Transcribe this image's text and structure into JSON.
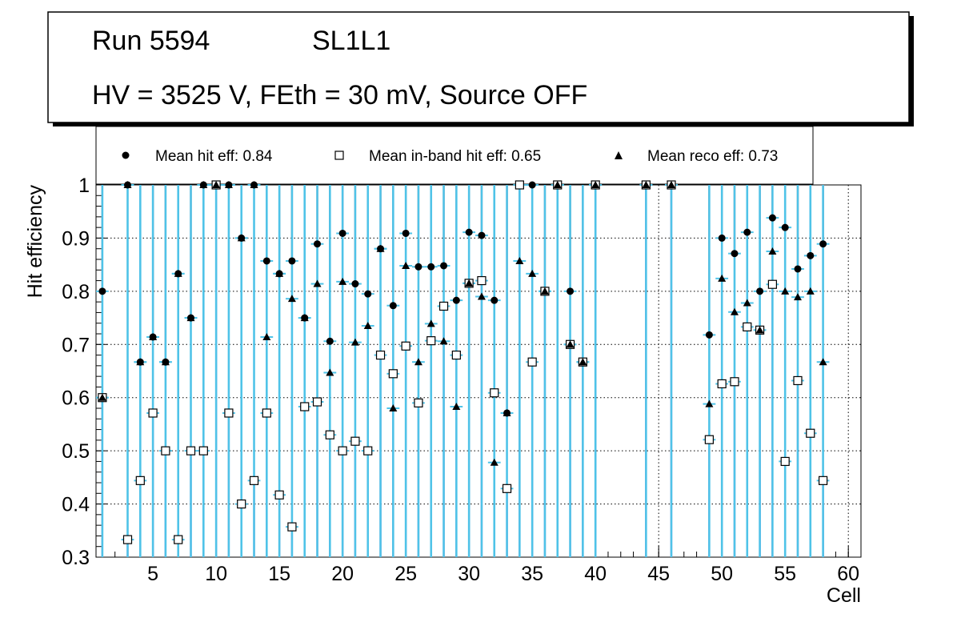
{
  "title_box": {
    "run": "Run 5594",
    "layer": "SL1L1",
    "conditions": "HV = 3525 V, FEth = 30 mV, Source OFF"
  },
  "legend": {
    "hit": "Mean hit  eff: 0.84",
    "inband": "Mean in-band hit eff: 0.65",
    "reco": "Mean reco eff: 0.73"
  },
  "colors": {
    "error_bar": "#4fc3e8",
    "up_error_hit": "#c00000",
    "down_error_inband": "#7a00b0",
    "marker": "#000000",
    "grid": "#000000"
  },
  "chart_data": {
    "type": "scatter",
    "xlabel": "Cell",
    "ylabel": "Hit efficiency",
    "xlim": [
      0.5,
      61
    ],
    "ylim": [
      0.3,
      1.0
    ],
    "xticks": [
      5,
      10,
      15,
      20,
      25,
      30,
      35,
      40,
      45,
      50,
      55,
      60
    ],
    "yticks": [
      0.3,
      0.4,
      0.5,
      0.6,
      0.7,
      0.8,
      0.9,
      1.0
    ],
    "yticklabels": [
      "0.3",
      "0.4",
      "0.5",
      "0.6",
      "0.7",
      "0.8",
      "0.9",
      "1"
    ],
    "grid": true,
    "x": [
      1,
      3,
      4,
      5,
      6,
      7,
      8,
      9,
      10,
      11,
      12,
      13,
      14,
      15,
      16,
      17,
      18,
      19,
      20,
      21,
      22,
      23,
      24,
      25,
      26,
      27,
      28,
      29,
      30,
      31,
      32,
      33,
      34,
      35,
      36,
      37,
      38,
      39,
      40,
      44,
      46,
      49,
      50,
      51,
      52,
      53,
      54,
      55,
      56,
      57,
      58
    ],
    "series": [
      {
        "name": "Mean hit eff",
        "marker": "circle",
        "values": [
          0.8,
          1.0,
          0.667,
          0.714,
          0.667,
          0.833,
          0.75,
          1.0,
          1.0,
          1.0,
          0.9,
          1.0,
          0.857,
          0.833,
          0.857,
          0.75,
          0.889,
          0.706,
          0.909,
          0.814,
          0.795,
          0.88,
          0.773,
          0.909,
          0.846,
          0.846,
          0.848,
          0.783,
          0.911,
          0.905,
          0.783,
          0.571,
          1.0,
          1.0,
          0.8,
          1.0,
          0.8,
          0.667,
          1.0,
          1.0,
          1.0,
          0.718,
          0.9,
          0.871,
          0.911,
          0.8,
          0.938,
          0.92,
          0.842,
          0.867,
          0.889
        ]
      },
      {
        "name": "Mean in-band hit eff",
        "marker": "square",
        "values": [
          0.6,
          0.333,
          0.444,
          0.571,
          0.5,
          0.333,
          0.5,
          0.5,
          1.0,
          0.571,
          0.4,
          0.444,
          0.571,
          0.417,
          0.357,
          0.583,
          0.592,
          0.53,
          0.5,
          0.518,
          0.5,
          0.68,
          0.645,
          0.697,
          0.59,
          0.707,
          0.772,
          0.68,
          0.815,
          0.82,
          0.609,
          0.429,
          1.0,
          0.667,
          0.8,
          1.0,
          0.7,
          0.667,
          1.0,
          1.0,
          1.0,
          0.521,
          0.626,
          0.63,
          0.733,
          0.727,
          0.813,
          0.48,
          0.632,
          0.533,
          0.444
        ]
      },
      {
        "name": "Mean reco eff",
        "marker": "triangle",
        "values": [
          0.6,
          1.0,
          0.667,
          0.714,
          0.667,
          0.833,
          0.75,
          1.0,
          1.0,
          1.0,
          0.9,
          1.0,
          0.714,
          0.833,
          0.786,
          0.75,
          0.814,
          0.647,
          0.818,
          0.704,
          0.735,
          0.88,
          0.58,
          0.848,
          0.667,
          0.739,
          0.706,
          0.583,
          0.815,
          0.79,
          0.478,
          0.571,
          0.857,
          0.833,
          0.8,
          1.0,
          0.7,
          0.667,
          1.0,
          1.0,
          1.0,
          0.588,
          0.824,
          0.761,
          0.778,
          0.727,
          0.875,
          0.8,
          0.789,
          0.8,
          0.667
        ]
      }
    ]
  }
}
